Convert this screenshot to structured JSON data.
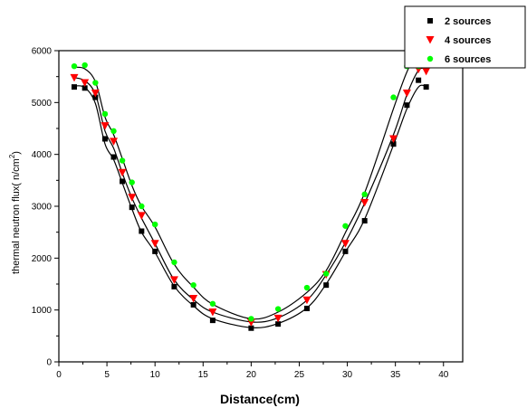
{
  "chart_data": {
    "type": "scatter",
    "title": "",
    "xlabel": "Distance(cm)",
    "ylabel_text": "thermal neutron flux( n/cm",
    "ylabel_sup": "2",
    "ylabel_close": ")",
    "xlim": [
      0,
      42
    ],
    "ylim": [
      0,
      6000
    ],
    "xticks": [
      0,
      5,
      10,
      15,
      20,
      25,
      30,
      35,
      40
    ],
    "yticks": [
      0,
      1000,
      2000,
      3000,
      4000,
      5000,
      6000
    ],
    "legend_position": "top-right",
    "series": [
      {
        "name": "2 sources",
        "marker": "square",
        "color": "#000000",
        "x": [
          1.6,
          2.7,
          3.8,
          4.8,
          5.7,
          6.6,
          7.6,
          8.6,
          10.0,
          12.0,
          14.0,
          16.0,
          20.0,
          22.8,
          25.8,
          27.8,
          29.8,
          31.8,
          34.8,
          36.2,
          37.4,
          38.2
        ],
        "y": [
          5300,
          5280,
          5100,
          4300,
          3950,
          3480,
          2980,
          2520,
          2130,
          1450,
          1100,
          800,
          650,
          730,
          1030,
          1480,
          2130,
          2720,
          4200,
          4950,
          5430,
          5300
        ],
        "fit_y": [
          5320,
          5290,
          4980,
          4200,
          3900,
          3450,
          2950,
          2500,
          2110,
          1460,
          1080,
          830,
          660,
          740,
          1040,
          1500,
          2120,
          2750,
          4180,
          4880,
          5300,
          5310
        ]
      },
      {
        "name": "4 sources",
        "marker": "triangle-down",
        "color": "#ff0000",
        "x": [
          1.6,
          2.7,
          3.8,
          4.8,
          5.7,
          6.6,
          7.6,
          8.6,
          10.0,
          12.0,
          14.0,
          16.0,
          20.0,
          22.8,
          25.8,
          27.8,
          29.8,
          31.8,
          34.8,
          36.2,
          37.4,
          38.2
        ],
        "y": [
          5480,
          5380,
          5180,
          4550,
          4250,
          3650,
          3170,
          2820,
          2280,
          1580,
          1220,
          960,
          760,
          840,
          1190,
          1680,
          2280,
          3070,
          4300,
          5180,
          5640,
          5600
        ],
        "fit_y": [
          5480,
          5420,
          5160,
          4450,
          4120,
          3640,
          3160,
          2770,
          2280,
          1580,
          1200,
          960,
          770,
          850,
          1190,
          1680,
          2300,
          3060,
          4380,
          5150,
          5620,
          5640
        ]
      },
      {
        "name": "6 sources",
        "marker": "circle",
        "color": "#00ff00",
        "x": [
          1.6,
          2.7,
          3.8,
          4.8,
          5.7,
          6.6,
          7.6,
          8.6,
          10.0,
          12.0,
          14.0,
          16.0,
          20.0,
          22.8,
          25.8,
          27.8,
          29.8,
          31.8,
          34.8,
          36.2,
          37.4,
          38.2
        ],
        "y": [
          5700,
          5720,
          5380,
          4780,
          4450,
          3880,
          3460,
          3000,
          2650,
          1920,
          1480,
          1120,
          830,
          1020,
          1430,
          1700,
          2620,
          3230,
          5100,
          5700,
          5700,
          5870
        ],
        "fit_y": [
          5680,
          5650,
          5400,
          4720,
          4380,
          3920,
          3400,
          3000,
          2600,
          1880,
          1440,
          1110,
          830,
          960,
          1340,
          1760,
          2490,
          3260,
          4880,
          5590,
          5980,
          5900
        ]
      }
    ]
  }
}
